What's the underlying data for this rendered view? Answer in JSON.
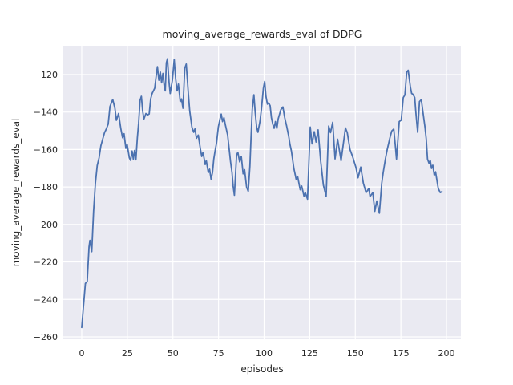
{
  "figure": {
    "title": "moving_average_rewards_eval of DDPG",
    "xlabel": "episodes",
    "ylabel": "moving_average_rewards_eval"
  },
  "chart_data": {
    "type": "line",
    "title": "moving_average_rewards_eval of DDPG",
    "xlabel": "episodes",
    "ylabel": "moving_average_rewards_eval",
    "x_ticks": [
      0,
      25,
      50,
      75,
      100,
      125,
      150,
      175,
      200
    ],
    "y_ticks": [
      -260,
      -240,
      -220,
      -200,
      -180,
      -160,
      -140,
      -120
    ],
    "xlim": [
      -10.1,
      207.9
    ],
    "ylim": [
      -261.3,
      -104.6
    ],
    "grid": true,
    "legend": false,
    "style": {
      "figure_bg": "#FFFFFF",
      "plot_bg": "#EAEAF2",
      "grid_color": "#FFFFFF",
      "line_color": "#4C72B0",
      "text_color": "#262626"
    },
    "series": [
      {
        "name": "moving_average_rewards_eval",
        "x": [
          0,
          1,
          2,
          3,
          4,
          4.5,
          5.5,
          6.5,
          7.5,
          8.5,
          9.5,
          10.5,
          11.5,
          12.5,
          13.5,
          14.5,
          15.5,
          17,
          18.2,
          19,
          20.2,
          21.4,
          22.4,
          23.2,
          24.2,
          24.9,
          26.1,
          26.8,
          27.6,
          28.3,
          29,
          29.7,
          30.5,
          31.2,
          32,
          32.7,
          33.4,
          34.1,
          35.2,
          36.2,
          37,
          37.8,
          38.6,
          40,
          40.8,
          41.5,
          42.3,
          43.1,
          43.8,
          44.5,
          45.2,
          45.8,
          46.4,
          47,
          47.9,
          48.5,
          49.7,
          50.7,
          51.5,
          52.3,
          53,
          54,
          54.7,
          55.5,
          56.5,
          57.3,
          58.4,
          59.2,
          60.4,
          61.4,
          62.1,
          62.9,
          63.9,
          65,
          65.8,
          66.5,
          67.7,
          68.3,
          69.4,
          70.1,
          70.9,
          71.7,
          72.4,
          73.1,
          73.9,
          74.9,
          75.8,
          76.5,
          77.2,
          78,
          78.7,
          80,
          80.8,
          81.6,
          82.4,
          83,
          83.7,
          84.9,
          85.6,
          86.6,
          87.5,
          88.5,
          89.3,
          90.4,
          91.3,
          92.2,
          92.8,
          93.5,
          94.4,
          95.1,
          95.9,
          96.6,
          97.7,
          98.5,
          99.6,
          100.3,
          101,
          101.8,
          102.5,
          103.3,
          104,
          104.8,
          105.5,
          106.2,
          107,
          107.7,
          109.2,
          110.3,
          111.3,
          112.3,
          113.5,
          114.2,
          115,
          116.3,
          117.6,
          118.4,
          119.8,
          120.6,
          121.9,
          122.6,
          123.8,
          125.3,
          126.3,
          127.5,
          128.5,
          129.6,
          131,
          132.5,
          134,
          135.4,
          136.4,
          137.6,
          138.9,
          140.3,
          142.2,
          144.6,
          145.6,
          147.1,
          148.6,
          150.3,
          151.5,
          153,
          154.4,
          155.9,
          157.4,
          158.1,
          159.6,
          160.7,
          161.8,
          163.2,
          164.5,
          165.3,
          166.5,
          167.5,
          169,
          170,
          171.1,
          171.9,
          172.6,
          174.1,
          175.2,
          176.3,
          177.2,
          178.2,
          179,
          180.2,
          180.9,
          181.6,
          182.6,
          183.2,
          184.2,
          185.2,
          186.2,
          187.1,
          188.2,
          188.9,
          189.6,
          190.4,
          191.1,
          191.8,
          192.5,
          193.3,
          194,
          195.5,
          196.6,
          197.5
        ],
        "y": [
          -255,
          -243,
          -231.5,
          -230.5,
          -212,
          -208.5,
          -214.5,
          -193,
          -178,
          -168.5,
          -164.5,
          -158,
          -154.5,
          -151,
          -149,
          -146.5,
          -137,
          -133.3,
          -138,
          -144.4,
          -140.8,
          -148.7,
          -153.7,
          -151.6,
          -159.4,
          -157.3,
          -164.4,
          -165.8,
          -160.8,
          -165.1,
          -160.5,
          -165.5,
          -153.7,
          -145.8,
          -133.7,
          -131.6,
          -139.4,
          -143.7,
          -140.8,
          -141.5,
          -141,
          -133,
          -130.1,
          -127.3,
          -120.9,
          -115.8,
          -123,
          -118.7,
          -124.4,
          -119.4,
          -125.8,
          -128.7,
          -113.7,
          -111.6,
          -124.4,
          -130.1,
          -123,
          -112,
          -122.3,
          -128.7,
          -125.1,
          -134.4,
          -133,
          -138,
          -116.6,
          -114.4,
          -129.4,
          -139.4,
          -148,
          -150.8,
          -149,
          -154,
          -152.3,
          -159.4,
          -163.7,
          -161.5,
          -168,
          -166,
          -172.3,
          -170.5,
          -175.8,
          -172.3,
          -165.1,
          -160.8,
          -156.6,
          -148,
          -143.7,
          -141.1,
          -145.1,
          -143,
          -146.6,
          -152.3,
          -159.4,
          -166.6,
          -172.3,
          -179.4,
          -184.4,
          -163,
          -161.5,
          -166.6,
          -163.7,
          -173,
          -170.8,
          -180.1,
          -182.3,
          -169,
          -154.4,
          -138.7,
          -130.8,
          -140.1,
          -148,
          -150.8,
          -145.1,
          -138.7,
          -127.3,
          -123.7,
          -131.6,
          -135.8,
          -135.1,
          -136.6,
          -143,
          -146.6,
          -148.7,
          -145.1,
          -148.7,
          -143.7,
          -138.7,
          -137.3,
          -143,
          -147.3,
          -153,
          -157.3,
          -161,
          -170,
          -176,
          -174.5,
          -181.5,
          -179.5,
          -185,
          -183,
          -186.5,
          -148,
          -157,
          -150.5,
          -156,
          -149.5,
          -166,
          -179,
          -185,
          -147.5,
          -151,
          -145.5,
          -165,
          -154.5,
          -166,
          -148.5,
          -151,
          -160,
          -164,
          -169.4,
          -175.1,
          -169.4,
          -177.9,
          -183,
          -180.8,
          -185.1,
          -183,
          -193,
          -187.5,
          -194,
          -178,
          -172.3,
          -165.1,
          -160.1,
          -153.7,
          -150.1,
          -149.1,
          -157.3,
          -165.1,
          -145.1,
          -144.3,
          -132.3,
          -130.9,
          -118.7,
          -117.7,
          -126.6,
          -130.1,
          -130.5,
          -132.3,
          -140.1,
          -150.8,
          -134.4,
          -133.4,
          -140.1,
          -148,
          -154.4,
          -165.1,
          -167.3,
          -165.8,
          -170.1,
          -168.4,
          -173.7,
          -171.9,
          -180.8,
          -183,
          -182.5
        ]
      }
    ]
  }
}
